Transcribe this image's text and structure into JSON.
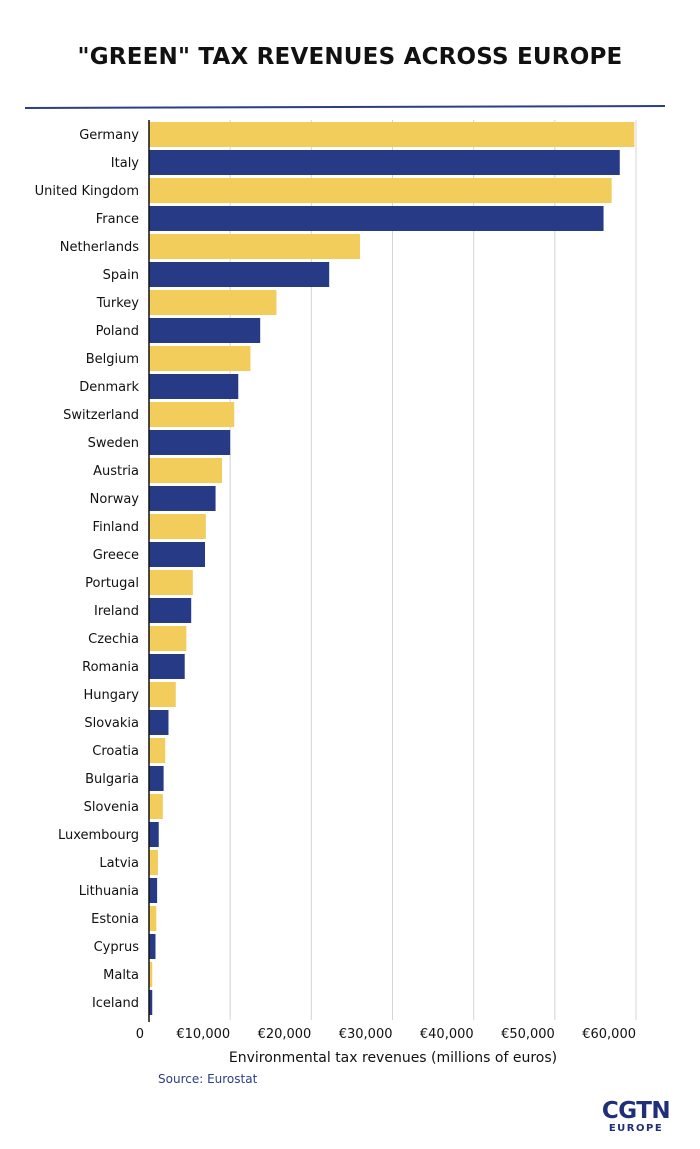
{
  "chart_data": {
    "type": "bar",
    "orientation": "horizontal",
    "title": "\"GREEN\" TAX REVENUES ACROSS EUROPE",
    "xlabel": "Environmental tax revenues (millions of euros)",
    "ylabel": "",
    "xlim": [
      0,
      60000
    ],
    "xticks": [
      0,
      10000,
      20000,
      30000,
      40000,
      50000,
      60000
    ],
    "xtick_labels": [
      "0",
      "€10,000",
      "€20,000",
      "€30,000",
      "€40,000",
      "€50,000",
      "€60,000"
    ],
    "grid": "vertical",
    "colors": {
      "yellow": "#f2cd5c",
      "blue": "#263a85"
    },
    "categories": [
      "Germany",
      "Italy",
      "United Kingdom",
      "France",
      "Netherlands",
      "Spain",
      "Turkey",
      "Poland",
      "Belgium",
      "Denmark",
      "Switzerland",
      "Sweden",
      "Austria",
      "Norway",
      "Finland",
      "Greece",
      "Portugal",
      "Ireland",
      "Czechia",
      "Romania",
      "Hungary",
      "Slovakia",
      "Croatia",
      "Bulgaria",
      "Slovenia",
      "Luxembourg",
      "Latvia",
      "Lithuania",
      "Estonia",
      "Cyprus",
      "Malta",
      "Iceland"
    ],
    "values": [
      59800,
      58000,
      57000,
      56000,
      26000,
      22200,
      15700,
      13700,
      12500,
      11000,
      10500,
      10000,
      9000,
      8200,
      7000,
      6900,
      5400,
      5200,
      4600,
      4400,
      3300,
      2400,
      2000,
      1800,
      1700,
      1200,
      1100,
      1000,
      900,
      800,
      400,
      400
    ],
    "bar_colors": [
      "yellow",
      "blue",
      "yellow",
      "blue",
      "yellow",
      "blue",
      "yellow",
      "blue",
      "yellow",
      "blue",
      "yellow",
      "blue",
      "yellow",
      "blue",
      "yellow",
      "blue",
      "yellow",
      "blue",
      "yellow",
      "blue",
      "yellow",
      "blue",
      "yellow",
      "blue",
      "yellow",
      "blue",
      "yellow",
      "blue",
      "yellow",
      "blue",
      "yellow",
      "blue"
    ]
  },
  "source": "Source: Eurostat",
  "logo": {
    "main": "CGTN",
    "sub": "EUROPE"
  }
}
